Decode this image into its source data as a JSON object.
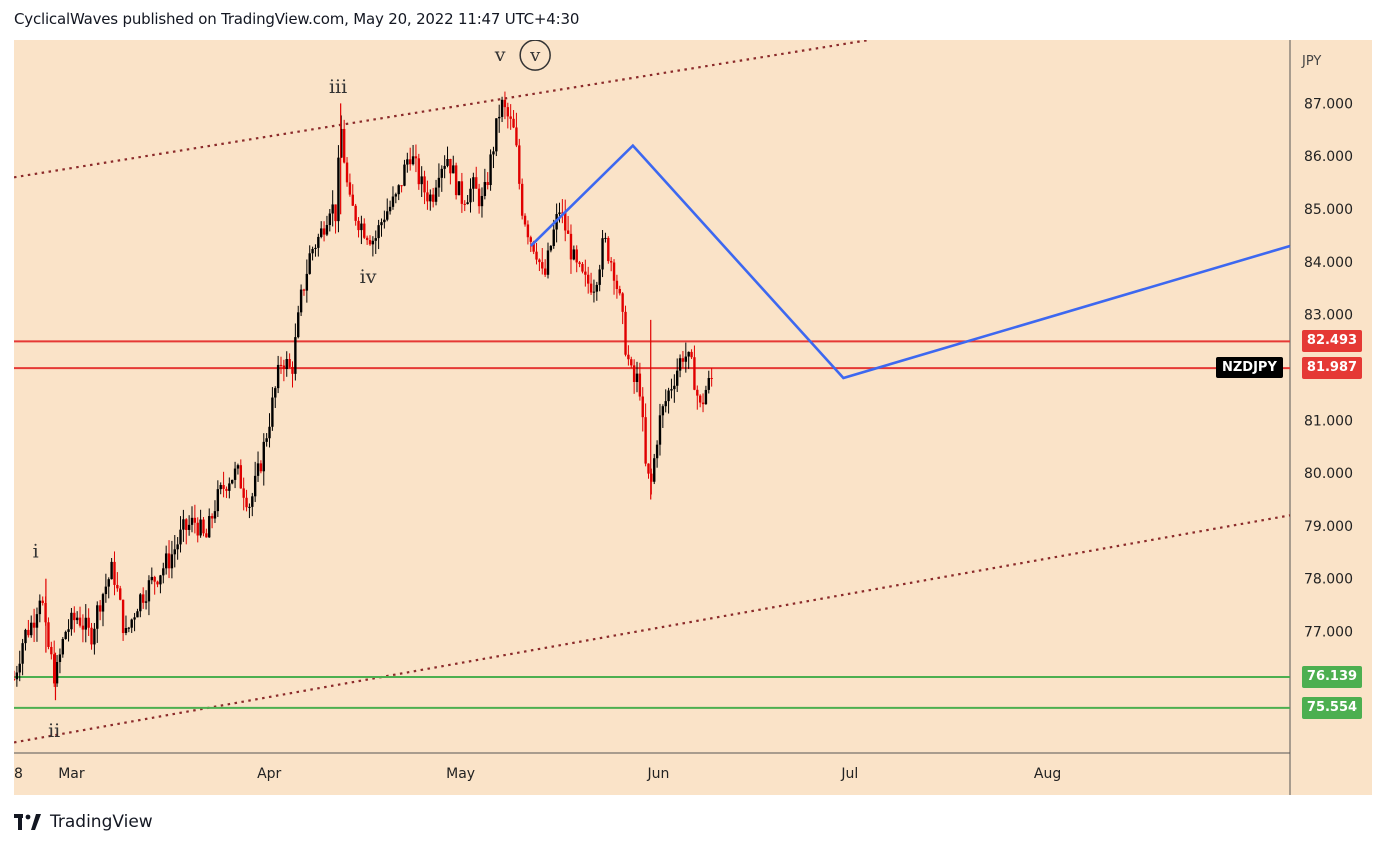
{
  "header": {
    "text": "CyclicalWaves published on TradingView.com, May 20, 2022 11:47 UTC+4:30"
  },
  "footer": {
    "brand": "TradingView",
    "logo_icon": "tradingview-logo-icon"
  },
  "colors": {
    "background": "#fae3c8",
    "up_candle": "#000000",
    "down_candle": "#e00000",
    "resistance": "#e53935",
    "support": "#4caf50",
    "channel": "#8b2a2a",
    "projection": "#3d68f0",
    "symbol_bg": "#000000"
  },
  "chart_data": {
    "type": "candlestick",
    "symbol": "NZDJPY",
    "currency": "JPY",
    "y_axis": {
      "min": 74.7,
      "max": 88.2,
      "ticks": [
        "87.000",
        "86.000",
        "85.000",
        "84.000",
        "83.000",
        "82.000",
        "81.000",
        "80.000",
        "79.000",
        "78.000",
        "77.000"
      ]
    },
    "x_axis": {
      "ticks": [
        {
          "label": "8",
          "day": 0
        },
        {
          "label": "Mar",
          "day": 9
        },
        {
          "label": "Apr",
          "day": 40
        },
        {
          "label": "May",
          "day": 70
        },
        {
          "label": "Jun",
          "day": 101
        },
        {
          "label": "Jul",
          "day": 131
        },
        {
          "label": "Aug",
          "day": 162
        }
      ],
      "day_min": 0,
      "day_max": 200
    },
    "price_path": [
      [
        0,
        76.1
      ],
      [
        1.5,
        76.9
      ],
      [
        3,
        77.2
      ],
      [
        4.2,
        77.8
      ],
      [
        5,
        76.9
      ],
      [
        6.5,
        76.1
      ],
      [
        8,
        77.0
      ],
      [
        10,
        77.3
      ],
      [
        12,
        76.9
      ],
      [
        13.5,
        77.6
      ],
      [
        15.5,
        78.2
      ],
      [
        17.5,
        76.9
      ],
      [
        19.5,
        77.6
      ],
      [
        22,
        78.0
      ],
      [
        24.5,
        78.4
      ],
      [
        26.5,
        78.9
      ],
      [
        28.5,
        79.1
      ],
      [
        30,
        78.7
      ],
      [
        31.5,
        79.4
      ],
      [
        33.5,
        79.9
      ],
      [
        35,
        80.0
      ],
      [
        37,
        79.4
      ],
      [
        38.5,
        80.1
      ],
      [
        40.5,
        81.3
      ],
      [
        42,
        82.2
      ],
      [
        43.5,
        81.9
      ],
      [
        45,
        83.3
      ],
      [
        46.5,
        84.2
      ],
      [
        48,
        84.5
      ],
      [
        49.5,
        85.1
      ],
      [
        50.5,
        84.9
      ],
      [
        51.2,
        86.6
      ],
      [
        52.5,
        85.1
      ],
      [
        54.5,
        84.7
      ],
      [
        56.5,
        84.4
      ],
      [
        58,
        84.9
      ],
      [
        60,
        85.2
      ],
      [
        62,
        86.1
      ],
      [
        64,
        85.4
      ],
      [
        65.5,
        85.2
      ],
      [
        66.5,
        85.8
      ],
      [
        68,
        86.0
      ],
      [
        70,
        85.2
      ],
      [
        72,
        85.4
      ],
      [
        73.5,
        85.1
      ],
      [
        75,
        86.1
      ],
      [
        76.3,
        87.0
      ],
      [
        77.5,
        86.7
      ],
      [
        78.5,
        86.4
      ],
      [
        79.5,
        85.1
      ],
      [
        80.8,
        84.5
      ],
      [
        82,
        84.2
      ],
      [
        83,
        83.6
      ],
      [
        84.3,
        84.4
      ],
      [
        85.5,
        85.0
      ],
      [
        86.5,
        84.6
      ],
      [
        88,
        83.9
      ],
      [
        89.5,
        83.6
      ],
      [
        91,
        83.6
      ],
      [
        92.5,
        84.4
      ],
      [
        94,
        83.9
      ],
      [
        95,
        83.2
      ],
      [
        96,
        82.3
      ],
      [
        97,
        81.7
      ],
      [
        98,
        81.8
      ],
      [
        99,
        80.1
      ],
      [
        99.8,
        79.7
      ],
      [
        101,
        80.9
      ],
      [
        102.5,
        81.5
      ],
      [
        104,
        82.0
      ],
      [
        105,
        82.3
      ],
      [
        106.5,
        81.9
      ],
      [
        107.5,
        81.2
      ],
      [
        108.5,
        81.6
      ],
      [
        109.5,
        81.8
      ]
    ],
    "horizontal_levels": [
      {
        "value": 82.493,
        "label": "82.493",
        "kind": "resistance"
      },
      {
        "value": 81.987,
        "label": "81.987",
        "kind": "resistance"
      },
      {
        "value": 76.139,
        "label": "76.139",
        "kind": "support"
      },
      {
        "value": 75.554,
        "label": "75.554",
        "kind": "support"
      }
    ],
    "channel_lines": [
      {
        "points": [
          [
            0,
            85.6
          ],
          [
            134,
            88.2
          ]
        ]
      },
      {
        "points": [
          [
            0,
            74.9
          ],
          [
            200,
            79.2
          ]
        ]
      }
    ],
    "projection_path": [
      [
        81,
        84.3
      ],
      [
        97,
        86.2
      ],
      [
        130,
        81.8
      ],
      [
        200,
        84.3
      ]
    ],
    "wave_labels": [
      {
        "text": "i",
        "day": 3.4,
        "price": 78.4
      },
      {
        "text": "ii",
        "day": 6.3,
        "price": 75.0
      },
      {
        "text": "iii",
        "day": 50.8,
        "price": 87.2
      },
      {
        "text": "iv",
        "day": 55.5,
        "price": 83.6
      },
      {
        "text": "v",
        "day": 76.2,
        "price": 87.8,
        "circled": "v"
      }
    ]
  }
}
